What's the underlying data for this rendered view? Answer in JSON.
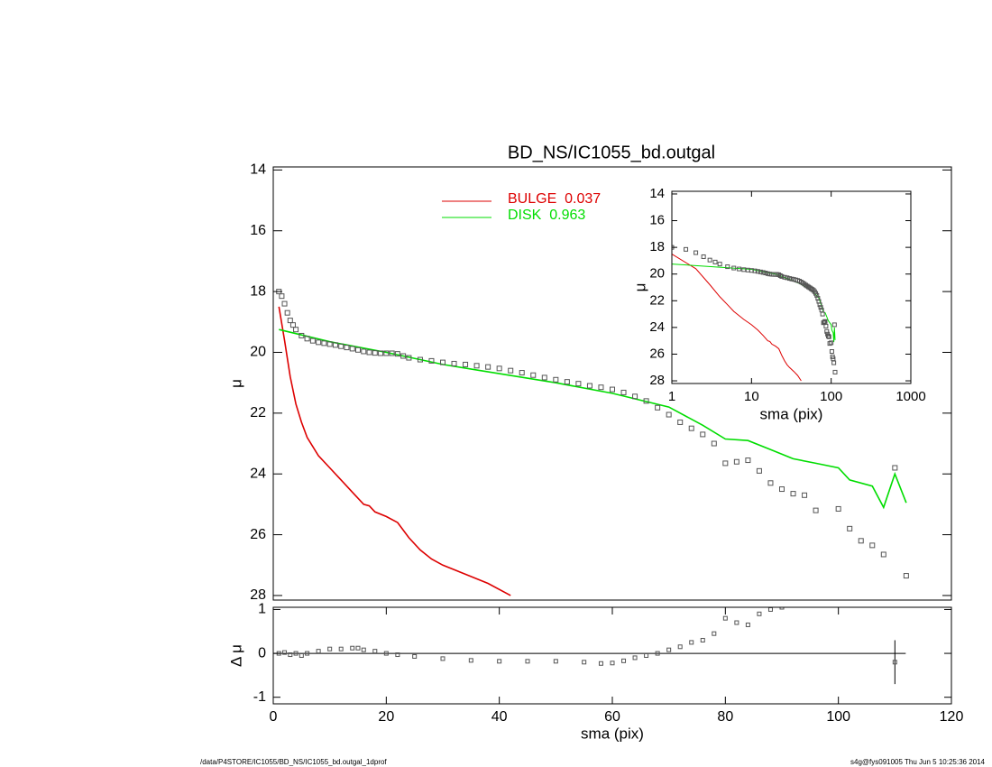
{
  "chart_data": [
    {
      "type": "line",
      "title": "BD_NS/IC1055_bd.outgal",
      "ylabel": "μ",
      "xlim": [
        0,
        120
      ],
      "ylim": [
        28.15,
        13.9
      ],
      "yticks": [
        14,
        16,
        18,
        20,
        22,
        24,
        26,
        28
      ],
      "series": [
        {
          "marker": "square",
          "color": "#555555",
          "x": [
            1,
            1.5,
            2,
            2.5,
            3,
            3.5,
            4,
            5,
            6,
            7,
            8,
            9,
            10,
            11,
            12,
            13,
            14,
            15,
            16,
            17,
            18,
            19,
            20,
            21,
            22,
            23,
            24,
            26,
            28,
            30,
            32,
            34,
            36,
            38,
            40,
            42,
            44,
            46,
            48,
            50,
            52,
            54,
            56,
            58,
            60,
            62,
            64,
            66,
            68,
            70,
            72,
            74,
            76,
            78,
            80,
            82,
            84,
            86,
            88,
            90,
            92,
            94,
            96,
            100,
            102,
            104,
            106,
            108,
            110,
            112
          ],
          "values": [
            18.0,
            18.15,
            18.4,
            18.7,
            18.95,
            19.1,
            19.25,
            19.45,
            19.55,
            19.62,
            19.67,
            19.7,
            19.73,
            19.76,
            19.8,
            19.84,
            19.88,
            19.92,
            19.97,
            20.0,
            20.02,
            20.03,
            20.03,
            20.03,
            20.05,
            20.12,
            20.18,
            20.24,
            20.28,
            20.33,
            20.37,
            20.4,
            20.44,
            20.48,
            20.53,
            20.6,
            20.67,
            20.75,
            20.83,
            20.9,
            20.97,
            21.03,
            21.1,
            21.15,
            21.22,
            21.32,
            21.45,
            21.6,
            21.82,
            22.05,
            22.3,
            22.5,
            22.7,
            23.0,
            23.65,
            23.6,
            23.55,
            23.9,
            24.3,
            24.5,
            24.65,
            24.7,
            25.2,
            25.15,
            25.8,
            26.2,
            26.35,
            26.65,
            23.8,
            27.35
          ]
        },
        {
          "name": "BULGE  0.037",
          "color": "#dd0000",
          "x": [
            1,
            2,
            3,
            4,
            5,
            6,
            8,
            10,
            12,
            14,
            16,
            17,
            18,
            20,
            22,
            24,
            26,
            28,
            30,
            34,
            38,
            42
          ],
          "values": [
            18.5,
            19.6,
            20.8,
            21.7,
            22.3,
            22.8,
            23.4,
            23.8,
            24.2,
            24.6,
            25.0,
            25.05,
            25.25,
            25.4,
            25.6,
            26.1,
            26.5,
            26.8,
            27.0,
            27.3,
            27.6,
            28.0
          ]
        },
        {
          "name": "DISK  0.963",
          "color": "#00dd00",
          "x": [
            1,
            10,
            20,
            30,
            40,
            50,
            60,
            70,
            76,
            80,
            84,
            88,
            92,
            96,
            100,
            102,
            106,
            108,
            110,
            112
          ],
          "values": [
            19.25,
            19.65,
            20.0,
            20.4,
            20.7,
            21.0,
            21.35,
            21.8,
            22.4,
            22.85,
            22.9,
            23.2,
            23.5,
            23.65,
            23.8,
            24.2,
            24.4,
            25.1,
            24.0,
            24.95
          ]
        }
      ]
    },
    {
      "type": "scatter",
      "xlabel": "sma (pix)",
      "ylabel": "Δ μ",
      "color": "#555555",
      "xlim": [
        0,
        120
      ],
      "xticks": [
        0,
        20,
        40,
        60,
        80,
        100,
        120
      ],
      "ylim": [
        -1.15,
        1.05
      ],
      "yticks": [
        -1,
        0,
        1
      ],
      "x": [
        1,
        2,
        3,
        4,
        5,
        6,
        8,
        10,
        12,
        14,
        15,
        16,
        18,
        20,
        22,
        25,
        30,
        35,
        40,
        45,
        50,
        55,
        58,
        60,
        62,
        64,
        66,
        68,
        70,
        72,
        74,
        76,
        78,
        80,
        82,
        84,
        86,
        88,
        90,
        110
      ],
      "values": [
        0,
        0.02,
        -0.03,
        0,
        -0.05,
        0,
        0.05,
        0.1,
        0.1,
        0.12,
        0.12,
        0.08,
        0.05,
        0,
        -0.03,
        -0.07,
        -0.12,
        -0.16,
        -0.18,
        -0.18,
        -0.18,
        -0.2,
        -0.23,
        -0.22,
        -0.17,
        -0.1,
        -0.05,
        0,
        0.08,
        0.15,
        0.25,
        0.3,
        0.45,
        0.8,
        0.7,
        0.65,
        0.9,
        1.0,
        1.05,
        -0.2
      ],
      "errors": [
        null,
        null,
        null,
        null,
        null,
        null,
        null,
        null,
        null,
        null,
        null,
        null,
        null,
        null,
        null,
        null,
        null,
        null,
        null,
        null,
        null,
        null,
        null,
        null,
        null,
        null,
        null,
        null,
        null,
        null,
        null,
        null,
        null,
        null,
        null,
        null,
        null,
        null,
        null,
        0.5
      ]
    },
    {
      "type": "line",
      "xlabel": "sma (pix)",
      "ylabel": "μ",
      "xlog": true,
      "xlim": [
        1,
        1000
      ],
      "xticks": [
        1,
        10,
        100,
        1000
      ],
      "ylim": [
        28.2,
        13.8
      ],
      "yticks": [
        14,
        16,
        18,
        20,
        22,
        24,
        26,
        28
      ],
      "series": [
        {
          "marker": "square",
          "color": "#555555",
          "x": [
            1,
            1.5,
            2,
            2.5,
            3,
            3.5,
            4,
            5,
            6,
            7,
            8,
            9,
            10,
            11,
            12,
            13,
            14,
            15,
            16,
            17,
            18,
            19,
            20,
            21,
            22,
            23,
            24,
            26,
            28,
            30,
            32,
            34,
            36,
            38,
            40,
            42,
            44,
            46,
            48,
            50,
            52,
            54,
            56,
            58,
            60,
            62,
            64,
            66,
            68,
            70,
            72,
            74,
            76,
            78,
            80,
            82,
            84,
            86,
            88,
            90,
            92,
            94,
            96,
            100,
            102,
            104,
            106,
            108,
            110,
            112
          ],
          "values": [
            18.0,
            18.15,
            18.4,
            18.7,
            18.95,
            19.1,
            19.25,
            19.45,
            19.55,
            19.62,
            19.67,
            19.7,
            19.73,
            19.76,
            19.8,
            19.84,
            19.88,
            19.92,
            19.97,
            20.0,
            20.02,
            20.03,
            20.03,
            20.03,
            20.05,
            20.12,
            20.18,
            20.24,
            20.28,
            20.33,
            20.37,
            20.4,
            20.44,
            20.48,
            20.53,
            20.6,
            20.67,
            20.75,
            20.83,
            20.9,
            20.97,
            21.03,
            21.1,
            21.15,
            21.22,
            21.32,
            21.45,
            21.6,
            21.82,
            22.05,
            22.3,
            22.5,
            22.7,
            23.0,
            23.65,
            23.6,
            23.55,
            23.9,
            24.3,
            24.5,
            24.65,
            24.7,
            25.2,
            25.15,
            25.8,
            26.2,
            26.35,
            26.65,
            23.8,
            27.35
          ]
        },
        {
          "color": "#dd0000",
          "x": [
            1,
            2,
            3,
            4,
            5,
            6,
            8,
            10,
            12,
            14,
            16,
            17,
            18,
            20,
            22,
            24,
            26,
            28,
            30,
            34,
            38,
            42
          ],
          "values": [
            18.5,
            19.6,
            20.8,
            21.7,
            22.3,
            22.8,
            23.4,
            23.8,
            24.2,
            24.6,
            25.0,
            25.05,
            25.25,
            25.4,
            25.6,
            26.1,
            26.5,
            26.8,
            27.0,
            27.3,
            27.6,
            28.0
          ]
        },
        {
          "color": "#00dd00",
          "x": [
            1,
            10,
            20,
            30,
            40,
            50,
            60,
            70,
            76,
            80,
            84,
            88,
            92,
            96,
            100,
            102,
            106,
            108,
            110,
            112
          ],
          "values": [
            19.25,
            19.65,
            20.0,
            20.4,
            20.7,
            21.0,
            21.35,
            21.8,
            22.4,
            22.85,
            22.9,
            23.2,
            23.5,
            23.65,
            23.8,
            24.2,
            24.4,
            25.1,
            24.0,
            24.95
          ]
        }
      ]
    }
  ],
  "footer": {
    "left": "/data/P4STORE/IC1055/BD_NS/IC1055_bd.outgal_1dprof",
    "right": "s4g@fys091005  Thu Jun  5 10:25:36 2014"
  }
}
